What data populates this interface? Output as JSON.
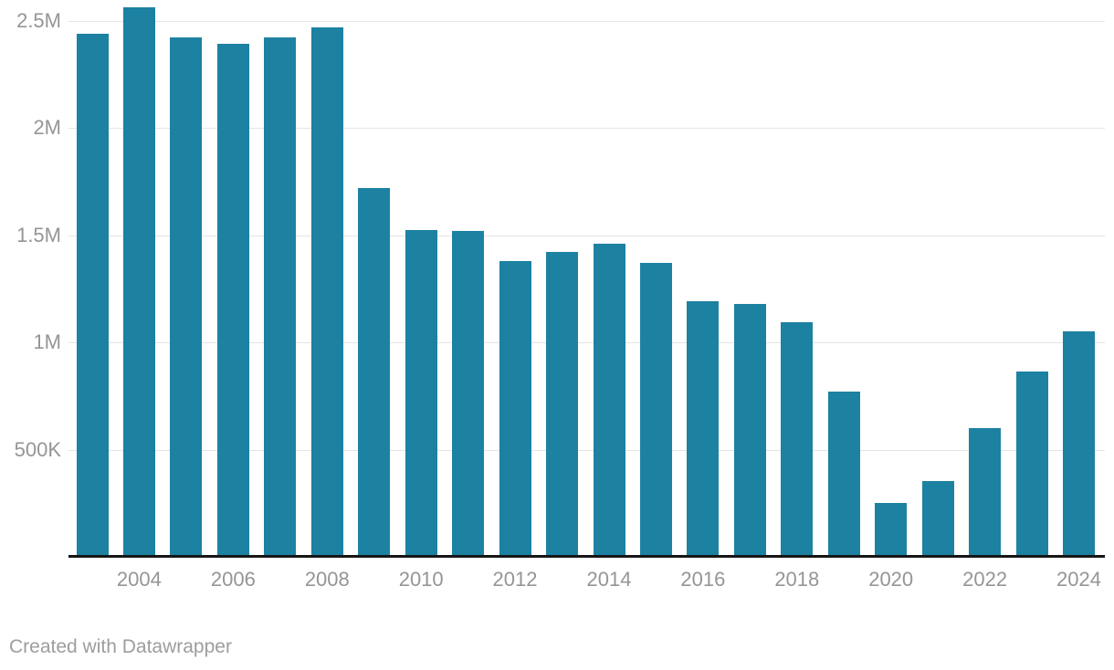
{
  "chart_data": {
    "type": "bar",
    "title": "",
    "xlabel": "",
    "ylabel": "",
    "categories": [
      2003,
      2004,
      2005,
      2006,
      2007,
      2008,
      2009,
      2010,
      2011,
      2012,
      2013,
      2014,
      2015,
      2016,
      2017,
      2018,
      2019,
      2020,
      2021,
      2022,
      2023,
      2024
    ],
    "values": [
      2440000,
      2560000,
      2420000,
      2390000,
      2420000,
      2470000,
      1720000,
      1525000,
      1520000,
      1380000,
      1420000,
      1460000,
      1370000,
      1190000,
      1180000,
      1095000,
      770000,
      250000,
      355000,
      600000,
      865000,
      1050000
    ],
    "y_ticks": [
      {
        "value": 500000,
        "label": "500K"
      },
      {
        "value": 1000000,
        "label": "1M"
      },
      {
        "value": 1500000,
        "label": "1.5M"
      },
      {
        "value": 2000000,
        "label": "2M"
      },
      {
        "value": 2500000,
        "label": "2.5M"
      }
    ],
    "x_tick_years": [
      2004,
      2006,
      2008,
      2010,
      2012,
      2014,
      2016,
      2018,
      2020,
      2022,
      2024
    ],
    "ylim": [
      0,
      2600000
    ],
    "grid": "horizontal",
    "legend": "none",
    "bar_color": "#1d81a2"
  },
  "colors": {
    "bar": "#1d81a2",
    "gridline": "#e4e4e4",
    "axis_line": "#161616",
    "tick_label": "#959595",
    "footer_text": "#9d9d9d",
    "background": "#ffffff"
  },
  "footer": {
    "text": "Created with Datawrapper"
  }
}
